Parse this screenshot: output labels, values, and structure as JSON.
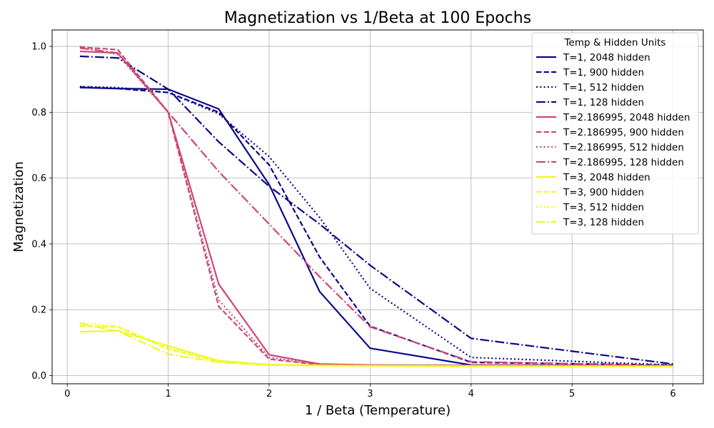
{
  "chart_data": {
    "type": "line",
    "title": "Magnetization vs 1/Beta at 100 Epochs",
    "xlabel": "1 / Beta (Temperature)",
    "ylabel": "Magnetization",
    "xlim": [
      -0.15,
      6.3
    ],
    "ylim": [
      -0.025,
      1.05
    ],
    "xticks": [
      0,
      1,
      2,
      3,
      4,
      5,
      6
    ],
    "yticks": [
      0.0,
      0.2,
      0.4,
      0.6,
      0.8,
      1.0
    ],
    "xtick_labels": [
      "0",
      "1",
      "2",
      "3",
      "4",
      "5",
      "6"
    ],
    "ytick_labels": [
      "0.0",
      "0.2",
      "0.4",
      "0.6",
      "0.8",
      "1.0"
    ],
    "grid": true,
    "legend_title": "Temp & Hidden Units",
    "legend_position": "top-right",
    "x": [
      0.125,
      0.5,
      1,
      1.5,
      2,
      2.5,
      3,
      4,
      6
    ],
    "series": [
      {
        "name": "T=1, 2048 hidden",
        "color": "#0d0887",
        "dash": "solid",
        "values": [
          0.875,
          0.872,
          0.87,
          0.81,
          0.58,
          0.255,
          0.083,
          0.032,
          0.03
        ]
      },
      {
        "name": "T=1, 900 hidden",
        "color": "#0d0887",
        "dash": "dashed",
        "values": [
          0.877,
          0.872,
          0.86,
          0.8,
          0.64,
          0.36,
          0.15,
          0.04,
          0.032
        ]
      },
      {
        "name": "T=1, 512 hidden",
        "color": "#0d0887",
        "dash": "dotted",
        "values": [
          0.878,
          0.875,
          0.86,
          0.795,
          0.665,
          0.48,
          0.265,
          0.055,
          0.032
        ]
      },
      {
        "name": "T=1, 128 hidden",
        "color": "#0d0887",
        "dash": "dashdot",
        "values": [
          0.97,
          0.965,
          0.87,
          0.71,
          0.575,
          0.46,
          0.335,
          0.113,
          0.035
        ]
      },
      {
        "name": "T=2.186995, 2048 hidden",
        "color": "#cc4778",
        "dash": "solid",
        "values": [
          0.985,
          0.98,
          0.8,
          0.278,
          0.063,
          0.035,
          0.032,
          0.031,
          0.03
        ]
      },
      {
        "name": "T=2.186995, 900 hidden",
        "color": "#cc4778",
        "dash": "dashed",
        "values": [
          0.998,
          0.99,
          0.8,
          0.21,
          0.05,
          0.033,
          0.031,
          0.031,
          0.03
        ]
      },
      {
        "name": "T=2.186995, 512 hidden",
        "color": "#cc4778",
        "dash": "dotted",
        "values": [
          1.0,
          0.975,
          0.8,
          0.23,
          0.055,
          0.034,
          0.032,
          0.031,
          0.03
        ]
      },
      {
        "name": "T=2.186995, 128 hidden",
        "color": "#cc4778",
        "dash": "dashdot",
        "values": [
          0.995,
          0.98,
          0.8,
          0.62,
          0.46,
          0.3,
          0.148,
          0.042,
          0.03
        ]
      },
      {
        "name": "T=3, 2048 hidden",
        "color": "#f0f921",
        "dash": "solid",
        "values": [
          0.133,
          0.136,
          0.09,
          0.045,
          0.033,
          0.031,
          0.03,
          0.029,
          0.028
        ]
      },
      {
        "name": "T=3, 900 hidden",
        "color": "#f0f921",
        "dash": "dashed",
        "values": [
          0.15,
          0.148,
          0.08,
          0.042,
          0.033,
          0.031,
          0.03,
          0.029,
          0.028
        ]
      },
      {
        "name": "T=3, 512 hidden",
        "color": "#f0f921",
        "dash": "dotted",
        "values": [
          0.16,
          0.15,
          0.085,
          0.043,
          0.033,
          0.031,
          0.03,
          0.029,
          0.028
        ]
      },
      {
        "name": "T=3, 128 hidden",
        "color": "#f0f921",
        "dash": "dashdot",
        "values": [
          0.158,
          0.135,
          0.065,
          0.04,
          0.032,
          0.03,
          0.029,
          0.028,
          0.028
        ]
      }
    ]
  }
}
